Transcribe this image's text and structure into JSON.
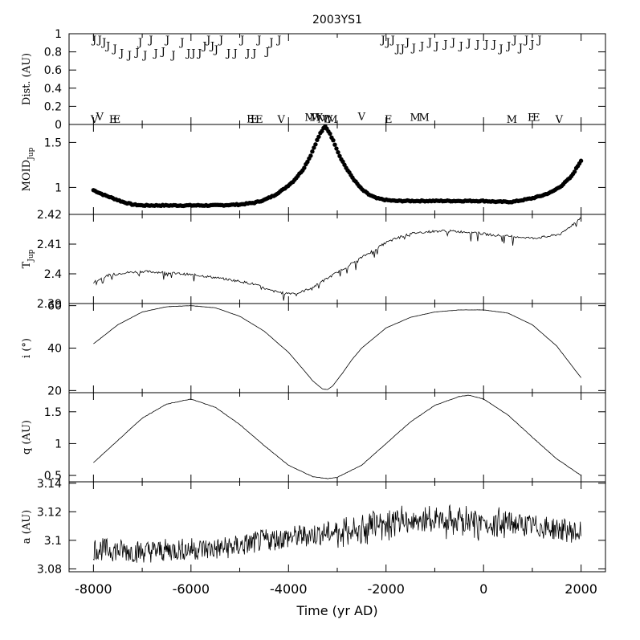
{
  "chart_data": {
    "type": "line",
    "title": "2003YS1",
    "xlabel": "Time (yr AD)",
    "xlim": [
      -8500,
      2500
    ],
    "x_ticks": [
      "-8000",
      "-6000",
      "-4000",
      "-2000",
      "0",
      "2000"
    ],
    "panels": [
      {
        "id": "dist",
        "ylabel": "Dist. (AU)",
        "ylim": [
          0,
          1
        ],
        "y_ticks": [
          "0",
          "0.2",
          "0.4",
          "0.6",
          "0.8",
          "1"
        ],
        "markers": [
          {
            "t": -7980,
            "d": 0.0,
            "label": "V"
          },
          {
            "t": -7870,
            "d": 0.05,
            "label": "V"
          },
          {
            "t": -7600,
            "d": 0.0,
            "label": "E"
          },
          {
            "t": -7520,
            "d": 0.0,
            "label": "E"
          },
          {
            "t": -4780,
            "d": 0.02,
            "label": "E"
          },
          {
            "t": -4700,
            "d": 0.0,
            "label": "E"
          },
          {
            "t": -4600,
            "d": 0.0,
            "label": "E"
          },
          {
            "t": -4150,
            "d": -0.02,
            "label": "V"
          },
          {
            "t": -3560,
            "d": 0.04,
            "label": "M"
          },
          {
            "t": -3460,
            "d": 0.04,
            "label": "M"
          },
          {
            "t": -3380,
            "d": 0.04,
            "label": "V"
          },
          {
            "t": -3300,
            "d": 0.02,
            "label": "M"
          },
          {
            "t": -3200,
            "d": 0.02,
            "label": "W"
          },
          {
            "t": -3100,
            "d": 0.0,
            "label": "M"
          },
          {
            "t": -2500,
            "d": 0.05,
            "label": "V"
          },
          {
            "t": -1950,
            "d": -0.02,
            "label": "E"
          },
          {
            "t": -1400,
            "d": 0.04,
            "label": "M"
          },
          {
            "t": -1220,
            "d": 0.04,
            "label": "M"
          },
          {
            "t": 580,
            "d": -0.02,
            "label": "M"
          },
          {
            "t": 980,
            "d": 0.04,
            "label": "E"
          },
          {
            "t": 1080,
            "d": 0.04,
            "label": "E"
          },
          {
            "t": 1550,
            "d": 0.0,
            "label": "V"
          }
        ],
        "jupiter_label": "J",
        "jupiter_encounters": [
          {
            "t": -7980,
            "d": 0.98
          },
          {
            "t": -7870,
            "d": 0.96
          },
          {
            "t": -7780,
            "d": 0.92
          },
          {
            "t": -7700,
            "d": 0.88
          },
          {
            "t": -7560,
            "d": 0.85
          },
          {
            "t": -7420,
            "d": 0.8
          },
          {
            "t": -7260,
            "d": 0.78
          },
          {
            "t": -7100,
            "d": 0.81
          },
          {
            "t": -7040,
            "d": 0.92
          },
          {
            "t": -6940,
            "d": 0.78
          },
          {
            "t": -6820,
            "d": 0.95
          },
          {
            "t": -6720,
            "d": 0.8
          },
          {
            "t": -6570,
            "d": 0.82
          },
          {
            "t": -6480,
            "d": 0.95
          },
          {
            "t": -6360,
            "d": 0.78
          },
          {
            "t": -6180,
            "d": 0.92
          },
          {
            "t": -6050,
            "d": 0.8
          },
          {
            "t": -5950,
            "d": 0.8
          },
          {
            "t": -5820,
            "d": 0.8
          },
          {
            "t": -5720,
            "d": 0.88
          },
          {
            "t": -5640,
            "d": 0.95
          },
          {
            "t": -5560,
            "d": 0.88
          },
          {
            "t": -5480,
            "d": 0.84
          },
          {
            "t": -5380,
            "d": 0.96
          },
          {
            "t": -5230,
            "d": 0.8
          },
          {
            "t": -5090,
            "d": 0.8
          },
          {
            "t": -4950,
            "d": 0.97
          },
          {
            "t": -4830,
            "d": 0.8
          },
          {
            "t": -4700,
            "d": 0.8
          },
          {
            "t": -4600,
            "d": 0.95
          },
          {
            "t": -4430,
            "d": 0.82
          },
          {
            "t": -4350,
            "d": 0.92
          },
          {
            "t": -4190,
            "d": 0.96
          },
          {
            "t": -2060,
            "d": 0.96
          },
          {
            "t": -1960,
            "d": 0.92
          },
          {
            "t": -1860,
            "d": 0.96
          },
          {
            "t": -1760,
            "d": 0.85
          },
          {
            "t": -1660,
            "d": 0.85
          },
          {
            "t": -1560,
            "d": 0.92
          },
          {
            "t": -1430,
            "d": 0.86
          },
          {
            "t": -1260,
            "d": 0.88
          },
          {
            "t": -1100,
            "d": 0.92
          },
          {
            "t": -960,
            "d": 0.88
          },
          {
            "t": -780,
            "d": 0.9
          },
          {
            "t": -620,
            "d": 0.92
          },
          {
            "t": -460,
            "d": 0.88
          },
          {
            "t": -300,
            "d": 0.91
          },
          {
            "t": -120,
            "d": 0.9
          },
          {
            "t": 60,
            "d": 0.9
          },
          {
            "t": 220,
            "d": 0.9
          },
          {
            "t": 360,
            "d": 0.85
          },
          {
            "t": 520,
            "d": 0.88
          },
          {
            "t": 640,
            "d": 0.96
          },
          {
            "t": 760,
            "d": 0.86
          },
          {
            "t": 880,
            "d": 0.96
          },
          {
            "t": 1000,
            "d": 0.9
          },
          {
            "t": 1150,
            "d": 0.96
          }
        ]
      },
      {
        "id": "moid",
        "ylabel": "MOID",
        "ylabel_sub": "Jup",
        "ylim": [
          0.7,
          1.7
        ],
        "y_ticks": [
          "1",
          "1.5"
        ],
        "style": "dots",
        "x": [
          -8000,
          -7800,
          -7600,
          -7400,
          -7200,
          -7000,
          -6800,
          -6500,
          -6000,
          -5500,
          -5000,
          -4700,
          -4500,
          -4300,
          -4100,
          -3900,
          -3700,
          -3550,
          -3450,
          -3350,
          -3250,
          -3150,
          -3050,
          -2950,
          -2800,
          -2650,
          -2500,
          -2350,
          -2200,
          -2000,
          -1800,
          -1500,
          -1000,
          -500,
          0,
          300,
          600,
          800,
          1000,
          1200,
          1400,
          1600,
          1800,
          2000
        ],
        "y": [
          0.97,
          0.92,
          0.88,
          0.84,
          0.81,
          0.8,
          0.8,
          0.8,
          0.8,
          0.8,
          0.81,
          0.83,
          0.86,
          0.91,
          0.98,
          1.07,
          1.2,
          1.35,
          1.48,
          1.6,
          1.68,
          1.6,
          1.48,
          1.35,
          1.2,
          1.08,
          0.98,
          0.92,
          0.88,
          0.86,
          0.85,
          0.85,
          0.85,
          0.85,
          0.85,
          0.84,
          0.84,
          0.86,
          0.88,
          0.91,
          0.95,
          1.02,
          1.12,
          1.3
        ]
      },
      {
        "id": "tjup",
        "ylabel": "T",
        "ylabel_sub": "Jup",
        "ylim": [
          2.39,
          2.42
        ],
        "y_ticks": [
          "2.39",
          "2.4",
          "2.41",
          "2.42"
        ],
        "style": "line",
        "x": [
          -8000,
          -7700,
          -7400,
          -7000,
          -6600,
          -6200,
          -5800,
          -5400,
          -5000,
          -4700,
          -4400,
          -4100,
          -3800,
          -3500,
          -3200,
          -2900,
          -2600,
          -2300,
          -2000,
          -1700,
          -1400,
          -1100,
          -800,
          -500,
          -200,
          100,
          400,
          700,
          1000,
          1300,
          1600,
          2000
        ],
        "y": [
          2.3972,
          2.3995,
          2.4003,
          2.4008,
          2.4005,
          2.4,
          2.3994,
          2.3985,
          2.3975,
          2.3965,
          2.3945,
          2.3935,
          2.3935,
          2.3955,
          2.3985,
          2.4015,
          2.4045,
          2.4075,
          2.4105,
          2.4125,
          2.4138,
          2.4142,
          2.4145,
          2.4142,
          2.414,
          2.4132,
          2.4128,
          2.4125,
          2.412,
          2.4125,
          2.4135,
          2.419
        ]
      },
      {
        "id": "incl",
        "ylabel": "i (°)",
        "ylim": [
          19,
          61
        ],
        "y_ticks": [
          "20",
          "40",
          "60"
        ],
        "style": "line",
        "x": [
          -8000,
          -7500,
          -7000,
          -6500,
          -6000,
          -5500,
          -5000,
          -4500,
          -4000,
          -3700,
          -3500,
          -3300,
          -3200,
          -3100,
          -2900,
          -2700,
          -2500,
          -2000,
          -1500,
          -1000,
          -500,
          0,
          500,
          1000,
          1500,
          2000
        ],
        "y": [
          42,
          51,
          57,
          59.5,
          60,
          59,
          55,
          48,
          38,
          30,
          24.5,
          20.7,
          20.5,
          22,
          28,
          34.5,
          40,
          49.5,
          54.5,
          57,
          58,
          58,
          56.5,
          51,
          41,
          26
        ]
      },
      {
        "id": "peri",
        "ylabel": "q (AU)",
        "ylim": [
          0.4,
          1.8
        ],
        "y_ticks": [
          "0.5",
          "1",
          "1.5"
        ],
        "style": "line",
        "x": [
          -8000,
          -7500,
          -7000,
          -6500,
          -6000,
          -5500,
          -5000,
          -4500,
          -4000,
          -3500,
          -3200,
          -3000,
          -2500,
          -2000,
          -1500,
          -1000,
          -500,
          -300,
          0,
          500,
          1000,
          1500,
          2000
        ],
        "y": [
          0.7,
          1.05,
          1.4,
          1.62,
          1.7,
          1.57,
          1.3,
          0.97,
          0.66,
          0.48,
          0.45,
          0.47,
          0.66,
          1.0,
          1.34,
          1.6,
          1.74,
          1.76,
          1.7,
          1.45,
          1.1,
          0.76,
          0.5
        ]
      },
      {
        "id": "semi",
        "ylabel": "a (AU)",
        "ylim": [
          3.078,
          3.141
        ],
        "y_ticks": [
          "3.08",
          "3.1",
          "3.12",
          "3.14"
        ],
        "style": "line",
        "x": [
          -8000,
          -7500,
          -7000,
          -6500,
          -6000,
          -5500,
          -5000,
          -4500,
          -4000,
          -3500,
          -3000,
          -2500,
          -2000,
          -1500,
          -1000,
          -500,
          0,
          500,
          1000,
          1500,
          2000
        ],
        "y": [
          3.094,
          3.093,
          3.092,
          3.093,
          3.094,
          3.094,
          3.096,
          3.1,
          3.102,
          3.104,
          3.106,
          3.108,
          3.112,
          3.114,
          3.114,
          3.112,
          3.112,
          3.112,
          3.11,
          3.108,
          3.105
        ]
      }
    ]
  }
}
